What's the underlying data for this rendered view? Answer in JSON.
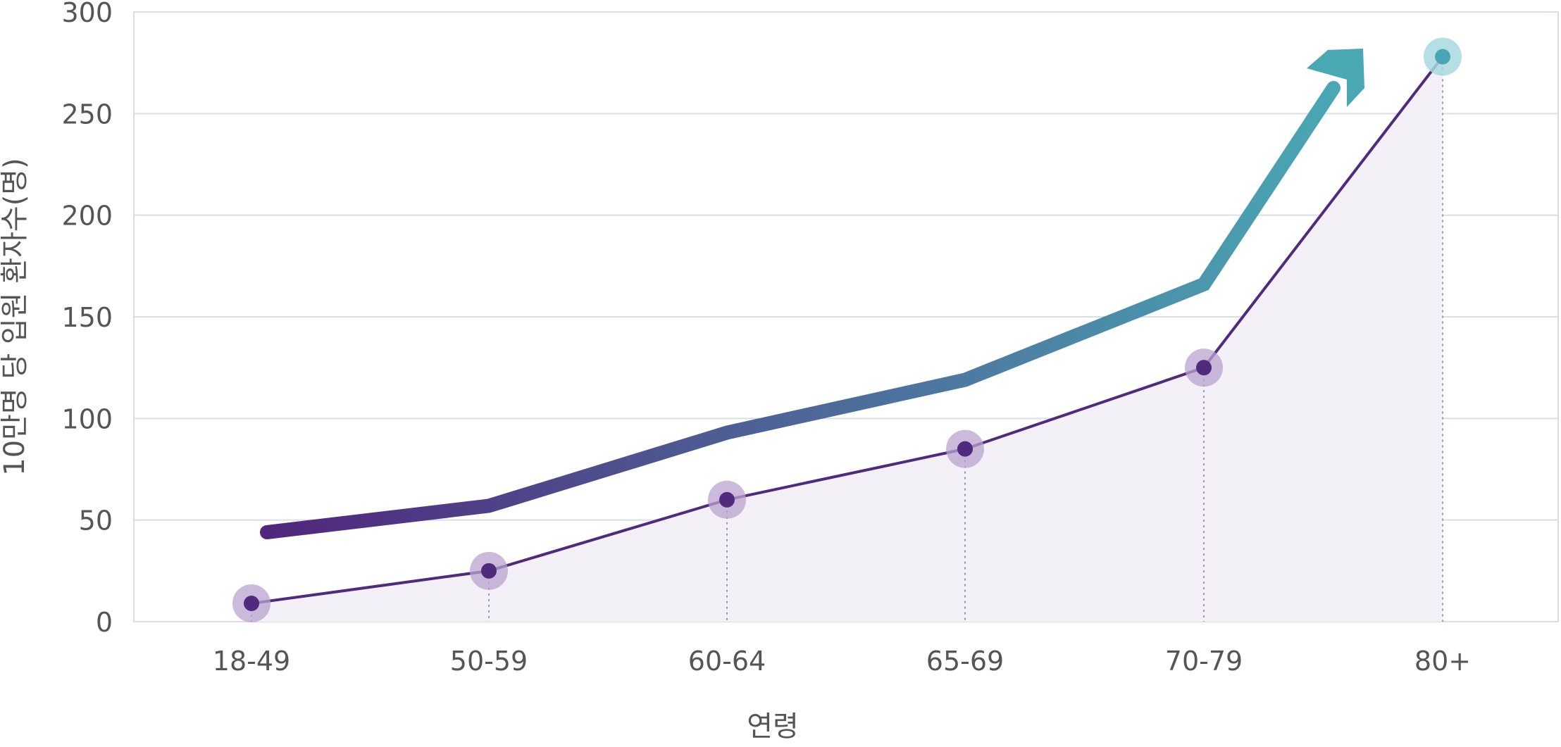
{
  "chart_data": {
    "type": "line",
    "categories": [
      "18-49",
      "50-59",
      "60-64",
      "65-69",
      "70-79",
      "80+"
    ],
    "series": [
      {
        "values": [
          9,
          25,
          60,
          85,
          125,
          278
        ]
      }
    ],
    "trend_arrow": {
      "values": [
        44,
        57,
        93,
        119,
        166,
        280
      ]
    },
    "ylabel": "10만명 당 입원 환자수(명)",
    "xlabel": "연령",
    "ylim": [
      0,
      300
    ],
    "yticks": [
      0,
      50,
      100,
      150,
      200,
      250,
      300
    ],
    "grid": true,
    "colors": {
      "line": "#4f2a7d",
      "marker": "#4f2a7d",
      "marker_halo": "#b9a3cf",
      "marker_halo_last": "#a8d8e0",
      "marker_last": "#4aa6b5",
      "area_fill": "#f3f0f8",
      "arrow_start": "#50267c",
      "arrow_end": "#4aa7b4",
      "grid": "#dcdce6",
      "text": "#555555"
    }
  }
}
